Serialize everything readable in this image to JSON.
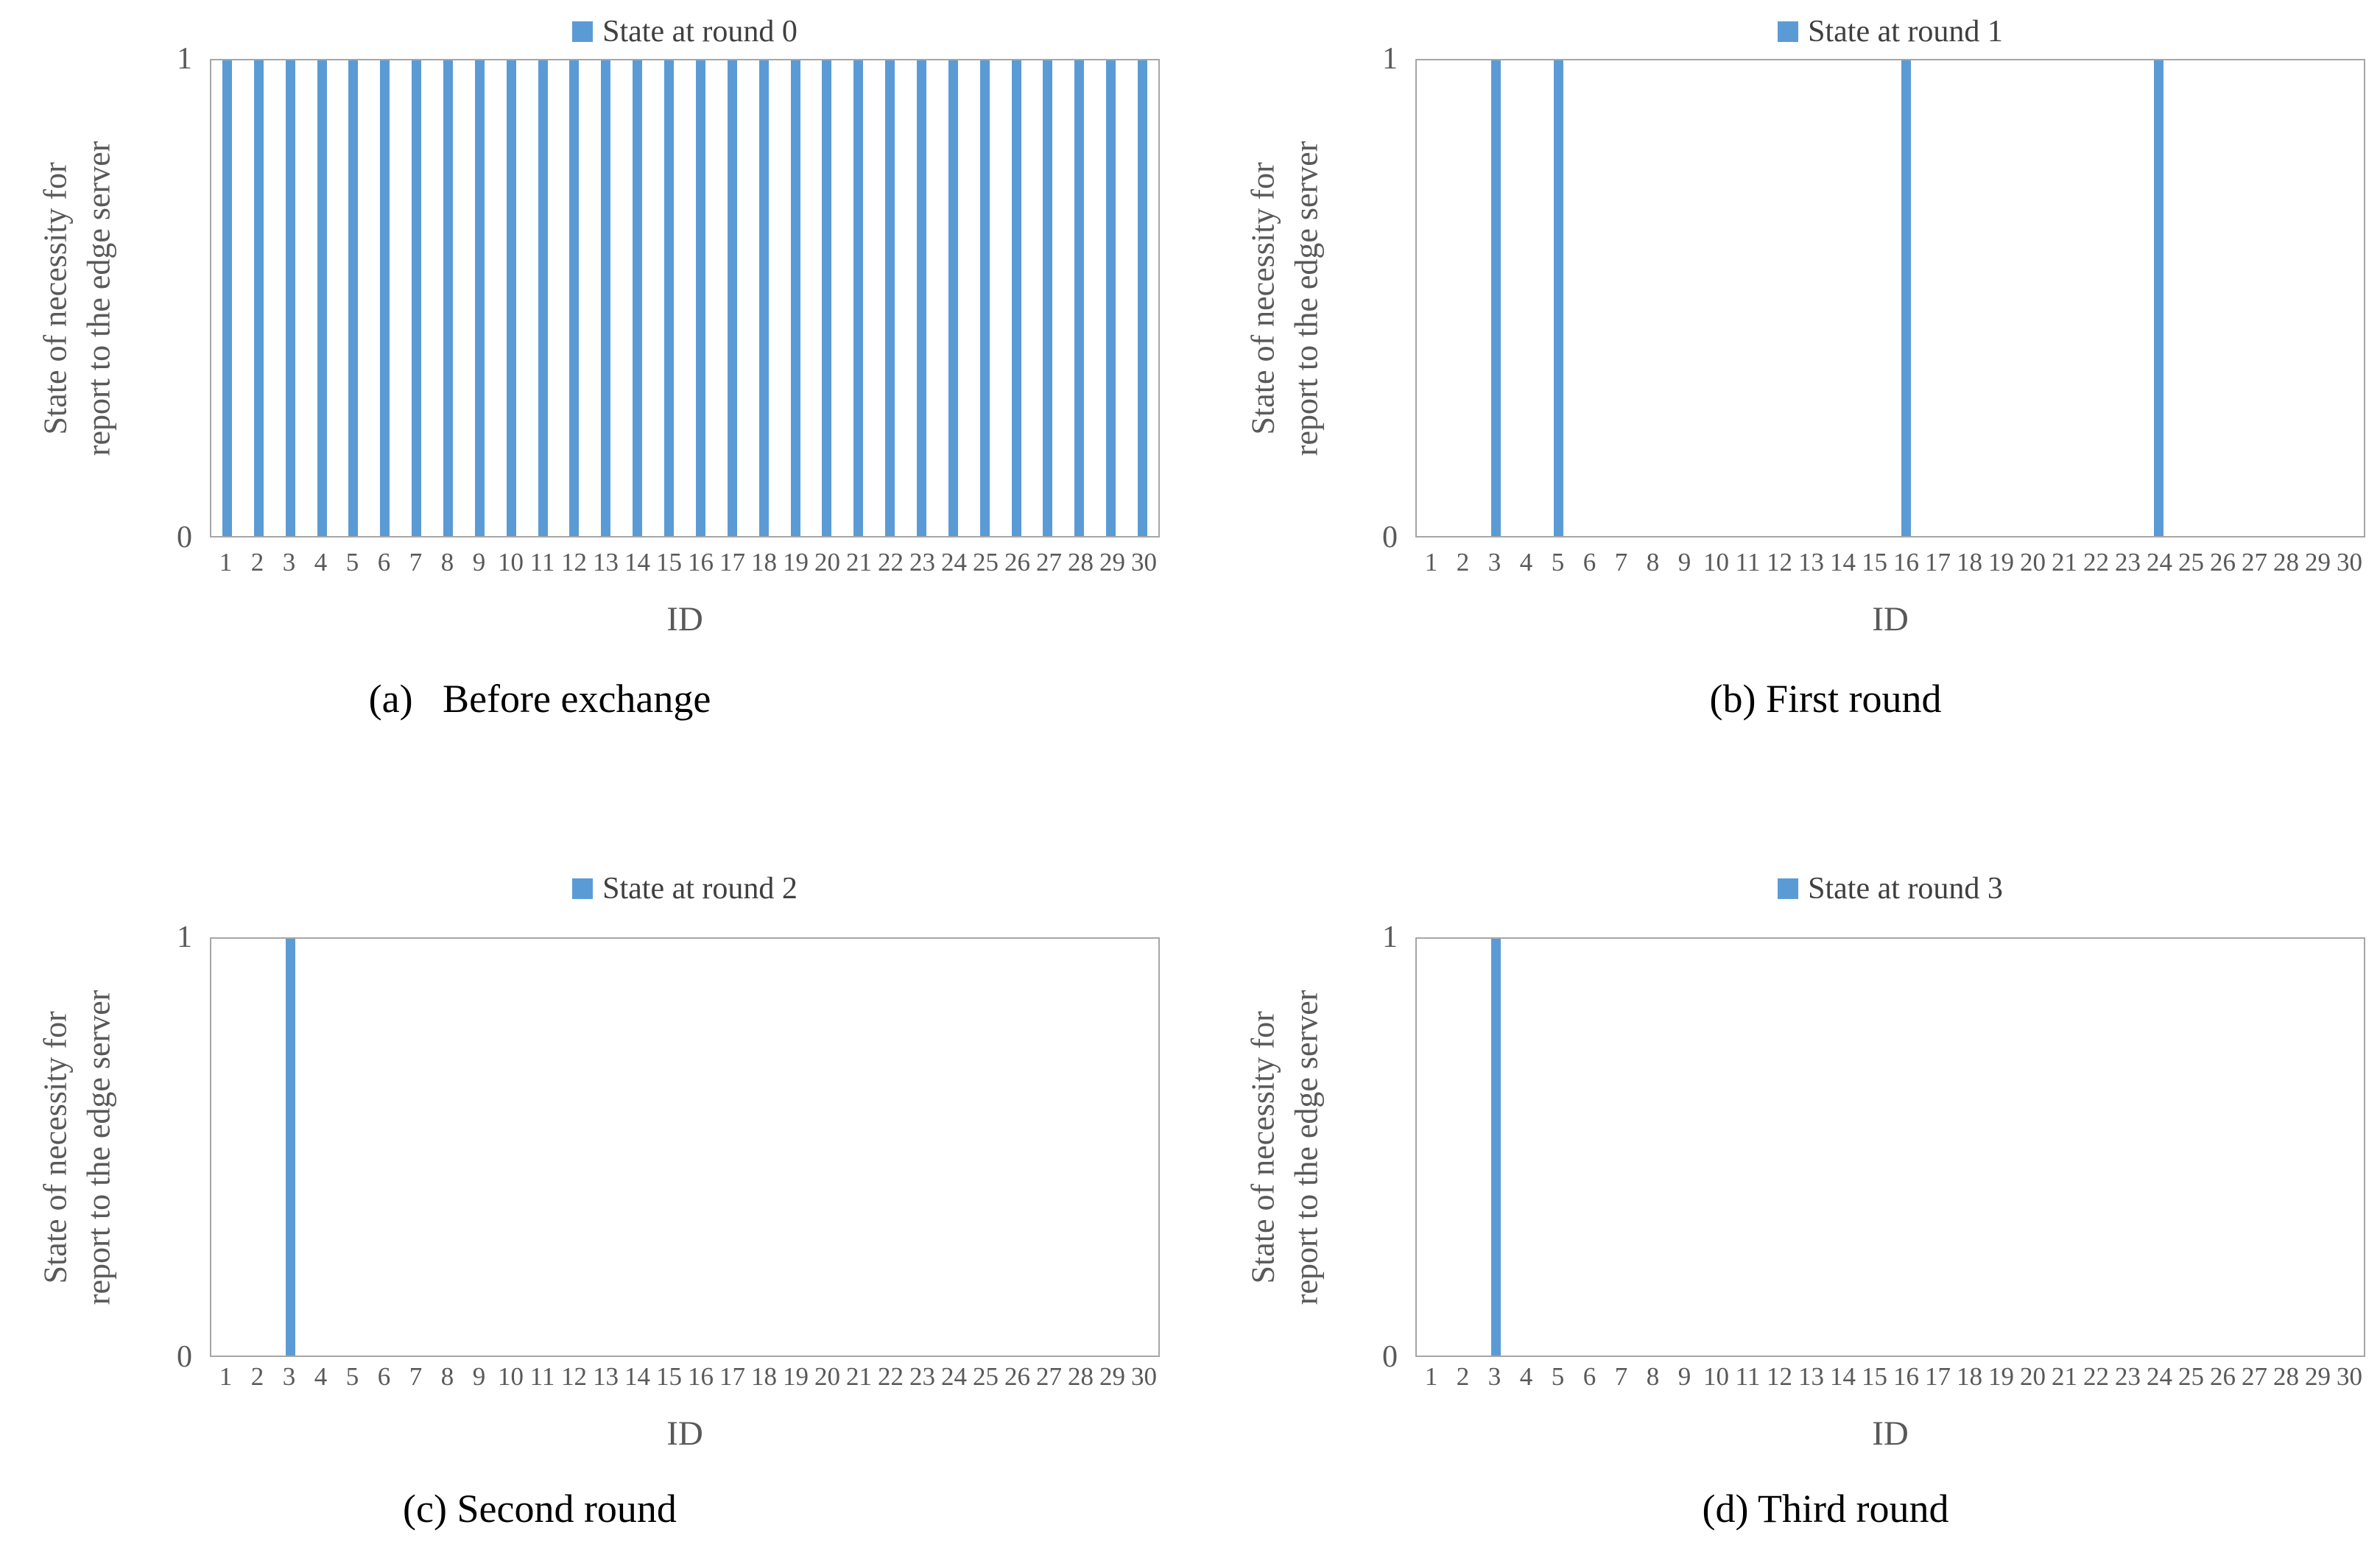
{
  "colors": {
    "bar": "#5B9BD5",
    "plot_border": "#a6a6a6",
    "tick_text": "#595959",
    "legend_text": "#404040",
    "caption_text": "#000000"
  },
  "shared": {
    "ylabel_line1": "State of necessity for",
    "ylabel_line2": "report to the edge server",
    "xlabel": "ID",
    "ytick_top": "1",
    "ytick_bottom": "0"
  },
  "chart_data": [
    {
      "type": "bar",
      "panel": "a",
      "legend_label": "State at round 0",
      "caption": "(a)   Before exchange",
      "title": "",
      "xlabel": "ID",
      "ylabel": "State of necessity for report to the edge server",
      "ylim": [
        0,
        1
      ],
      "yticks": [
        0,
        1
      ],
      "grid": false,
      "legend_position": "top-center",
      "categories": [
        1,
        2,
        3,
        4,
        5,
        6,
        7,
        8,
        9,
        10,
        11,
        12,
        13,
        14,
        15,
        16,
        17,
        18,
        19,
        20,
        21,
        22,
        23,
        24,
        25,
        26,
        27,
        28,
        29,
        30
      ],
      "values": [
        1,
        1,
        1,
        1,
        1,
        1,
        1,
        1,
        1,
        1,
        1,
        1,
        1,
        1,
        1,
        1,
        1,
        1,
        1,
        1,
        1,
        1,
        1,
        1,
        1,
        1,
        1,
        1,
        1,
        1
      ],
      "active_ids": [
        1,
        2,
        3,
        4,
        5,
        6,
        7,
        8,
        9,
        10,
        11,
        12,
        13,
        14,
        15,
        16,
        17,
        18,
        19,
        20,
        21,
        22,
        23,
        24,
        25,
        26,
        27,
        28,
        29,
        30
      ]
    },
    {
      "type": "bar",
      "panel": "b",
      "legend_label": "State at round 1",
      "caption": "(b) First round",
      "title": "",
      "xlabel": "ID",
      "ylabel": "State of necessity for report to the edge server",
      "ylim": [
        0,
        1
      ],
      "yticks": [
        0,
        1
      ],
      "grid": false,
      "legend_position": "top-center",
      "categories": [
        1,
        2,
        3,
        4,
        5,
        6,
        7,
        8,
        9,
        10,
        11,
        12,
        13,
        14,
        15,
        16,
        17,
        18,
        19,
        20,
        21,
        22,
        23,
        24,
        25,
        26,
        27,
        28,
        29,
        30
      ],
      "values": [
        0,
        0,
        1,
        0,
        1,
        0,
        0,
        0,
        0,
        0,
        0,
        0,
        0,
        0,
        0,
        1,
        0,
        0,
        0,
        0,
        0,
        0,
        0,
        1,
        0,
        0,
        0,
        0,
        0,
        0
      ],
      "active_ids": [
        3,
        5,
        16,
        24
      ]
    },
    {
      "type": "bar",
      "panel": "c",
      "legend_label": "State at round 2",
      "caption": "(c) Second round",
      "title": "",
      "xlabel": "ID",
      "ylabel": "State of necessity for report to the edge server",
      "ylim": [
        0,
        1
      ],
      "yticks": [
        0,
        1
      ],
      "grid": false,
      "legend_position": "top-center",
      "categories": [
        1,
        2,
        3,
        4,
        5,
        6,
        7,
        8,
        9,
        10,
        11,
        12,
        13,
        14,
        15,
        16,
        17,
        18,
        19,
        20,
        21,
        22,
        23,
        24,
        25,
        26,
        27,
        28,
        29,
        30
      ],
      "values": [
        0,
        0,
        1,
        0,
        0,
        0,
        0,
        0,
        0,
        0,
        0,
        0,
        0,
        0,
        0,
        0,
        0,
        0,
        0,
        0,
        0,
        0,
        0,
        0,
        0,
        0,
        0,
        0,
        0,
        0
      ],
      "active_ids": [
        3
      ]
    },
    {
      "type": "bar",
      "panel": "d",
      "legend_label": "State at round 3",
      "caption": "(d) Third round",
      "title": "",
      "xlabel": "ID",
      "ylabel": "State of necessity for report to the edge server",
      "ylim": [
        0,
        1
      ],
      "yticks": [
        0,
        1
      ],
      "grid": false,
      "legend_position": "top-center",
      "categories": [
        1,
        2,
        3,
        4,
        5,
        6,
        7,
        8,
        9,
        10,
        11,
        12,
        13,
        14,
        15,
        16,
        17,
        18,
        19,
        20,
        21,
        22,
        23,
        24,
        25,
        26,
        27,
        28,
        29,
        30
      ],
      "values": [
        0,
        0,
        1,
        0,
        0,
        0,
        0,
        0,
        0,
        0,
        0,
        0,
        0,
        0,
        0,
        0,
        0,
        0,
        0,
        0,
        0,
        0,
        0,
        0,
        0,
        0,
        0,
        0,
        0,
        0
      ],
      "active_ids": [
        3
      ]
    }
  ]
}
